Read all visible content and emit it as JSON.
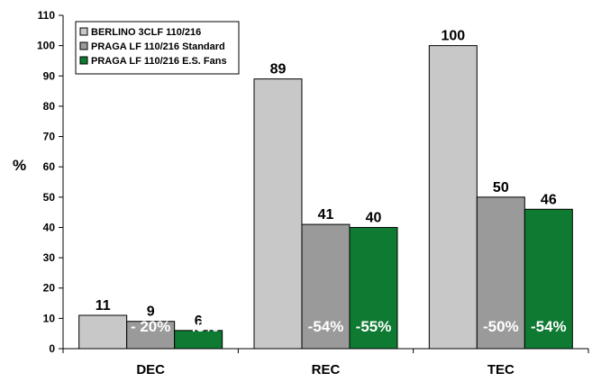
{
  "chart_data": {
    "type": "bar",
    "ylabel": "%",
    "ylim": [
      0,
      110
    ],
    "yticks": [
      0,
      10,
      20,
      30,
      40,
      50,
      60,
      70,
      80,
      90,
      100,
      110
    ],
    "grid": false,
    "legend_position": "top-left",
    "categories": [
      "DEC",
      "REC",
      "TEC"
    ],
    "series": [
      {
        "name": "BERLINO 3CLF 110/216",
        "color": "#c8c8c8",
        "values": [
          11,
          89,
          100
        ],
        "value_labels": [
          "11",
          "89",
          "100"
        ],
        "change_labels": [
          "",
          "",
          ""
        ]
      },
      {
        "name": "PRAGA LF 110/216 Standard",
        "color": "#9a9a9a",
        "values": [
          9,
          41,
          50
        ],
        "value_labels": [
          "9",
          "41",
          "50"
        ],
        "change_labels": [
          "- 20%",
          "-54%",
          "-50%"
        ]
      },
      {
        "name": "PRAGA LF 110/216 E.S. Fans",
        "color": "#0e7a32",
        "values": [
          6,
          40,
          46
        ],
        "value_labels": [
          "6",
          "40",
          "46"
        ],
        "change_labels": [
          "- 45%",
          "-55%",
          "-54%"
        ]
      }
    ]
  }
}
